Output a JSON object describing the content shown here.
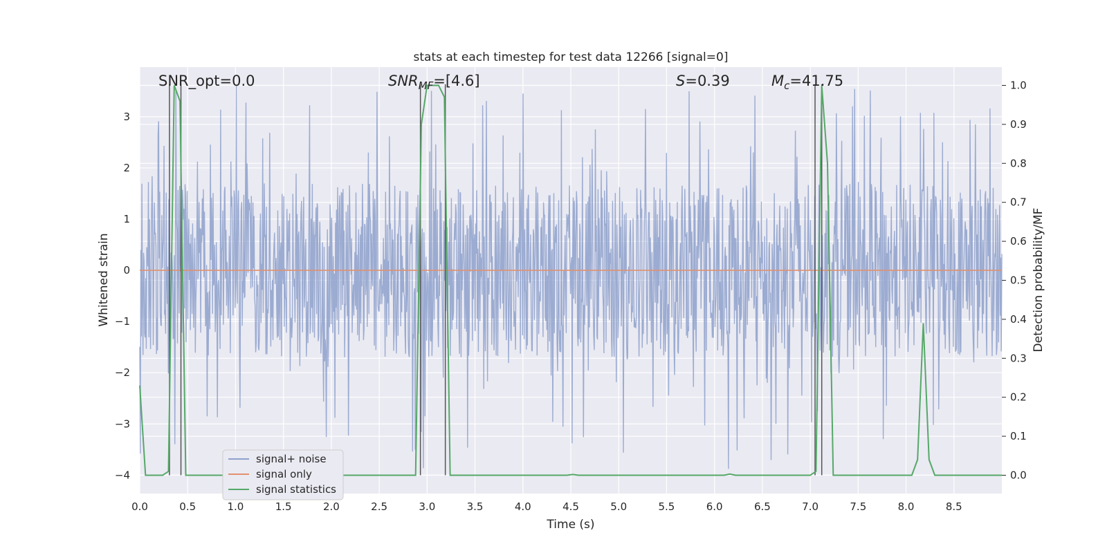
{
  "chart_data": {
    "type": "line",
    "title": "stats at each timestep for test data 12266 [signal=0]",
    "xlabel": "Time (s)",
    "ylabel": "Whitened strain",
    "y2label": "Detection probability/MF",
    "xlim": [
      0.0,
      9.0
    ],
    "ylim": [
      -4.36,
      3.97
    ],
    "y2lim": [
      -0.047,
      1.047
    ],
    "xticks": [
      "0.0",
      "0.5",
      "1.0",
      "1.5",
      "2.0",
      "2.5",
      "3.0",
      "3.5",
      "4.0",
      "4.5",
      "5.0",
      "5.5",
      "6.0",
      "6.5",
      "7.0",
      "7.5",
      "8.0",
      "8.5"
    ],
    "xtick_values": [
      0.0,
      0.5,
      1.0,
      1.5,
      2.0,
      2.5,
      3.0,
      3.5,
      4.0,
      4.5,
      5.0,
      5.5,
      6.0,
      6.5,
      7.0,
      7.5,
      8.0,
      8.5
    ],
    "yticks": [
      "−4",
      "−3",
      "−2",
      "−1",
      "0",
      "1",
      "2",
      "3"
    ],
    "ytick_values": [
      -4,
      -3,
      -2,
      -1,
      0,
      1,
      2,
      3
    ],
    "y2ticks": [
      "0.0",
      "0.1",
      "0.2",
      "0.3",
      "0.4",
      "0.5",
      "0.6",
      "0.7",
      "0.8",
      "0.9",
      "1.0"
    ],
    "y2tick_values": [
      0.0,
      0.1,
      0.2,
      0.3,
      0.4,
      0.5,
      0.6,
      0.7,
      0.8,
      0.9,
      1.0
    ],
    "grid": true,
    "legend_position": "lower-left",
    "annotations": {
      "snr_opt": {
        "text": "SNR_opt=0.0",
        "x": 0.2
      },
      "snr_mf_prefix": "SNR",
      "snr_mf_sub": "MF",
      "snr_mf_value": "=[4.6]",
      "s_symbol": "S",
      "s_value": "=0.39",
      "mc_symbol": "M",
      "mc_sub": "c",
      "mc_value": "=41.75"
    },
    "series": [
      {
        "name": "signal+ noise",
        "color": "#8da0cb",
        "noise_envelope": [
          -1.7,
          1.7
        ],
        "noise_peak_range": [
          -4.0,
          3.6
        ]
      },
      {
        "name": "signal only",
        "color": "#e0916f",
        "values_constant": 0.0
      },
      {
        "name": "signal statistics",
        "color": "#55a868",
        "x": [
          0.0,
          0.06,
          0.12,
          0.18,
          0.24,
          0.3,
          0.36,
          0.42,
          0.48,
          0.54,
          0.6,
          2.8,
          2.88,
          2.94,
          3.0,
          3.06,
          3.12,
          3.18,
          3.24,
          3.3,
          3.36,
          4.4,
          4.46,
          4.52,
          4.58,
          6.1,
          6.16,
          6.22,
          6.28,
          7.0,
          7.06,
          7.12,
          7.18,
          7.24,
          7.3,
          7.36,
          8.0,
          8.06,
          8.12,
          8.18,
          8.24,
          8.3,
          8.36,
          8.42,
          9.0
        ],
        "y": [
          0.23,
          0.0,
          0.0,
          0.0,
          0.0,
          0.01,
          1.0,
          0.96,
          0.0,
          0.0,
          0.0,
          0.0,
          0.0,
          0.9,
          1.0,
          1.0,
          1.0,
          0.97,
          0.0,
          0.0,
          0.0,
          0.0,
          0.0,
          0.002,
          0.0,
          0.0,
          0.003,
          0.0,
          0.0,
          0.0,
          0.01,
          1.0,
          0.8,
          0.0,
          0.0,
          0.0,
          0.0,
          0.0,
          0.04,
          0.39,
          0.04,
          0.0,
          0.0,
          0.0,
          0.0
        ]
      }
    ],
    "vlines": [
      0.31,
      0.43,
      2.93,
      3.19,
      7.05,
      7.12
    ],
    "vline_color": "#555555"
  }
}
